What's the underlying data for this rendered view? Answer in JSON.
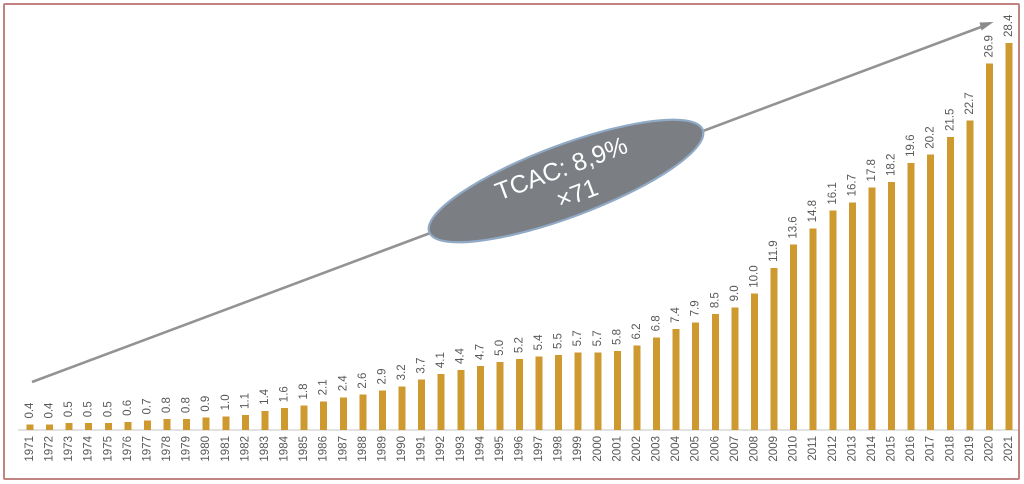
{
  "frame": {
    "border_color": "#C28383",
    "background": "#FFFFFF"
  },
  "chart_data": {
    "type": "bar",
    "title": "",
    "xlabel": "",
    "ylabel": "",
    "gridlines": false,
    "legend": false,
    "categories": [
      "1971",
      "1972",
      "1973",
      "1974",
      "1975",
      "1976",
      "1977",
      "1978",
      "1979",
      "1980",
      "1981",
      "1982",
      "1983",
      "1984",
      "1985",
      "1986",
      "1987",
      "1988",
      "1989",
      "1990",
      "1991",
      "1992",
      "1993",
      "1994",
      "1995",
      "1996",
      "1997",
      "1998",
      "1999",
      "2000",
      "2001",
      "2002",
      "2003",
      "2004",
      "2005",
      "2006",
      "2007",
      "2008",
      "2009",
      "2010",
      "2011",
      "2012",
      "2013",
      "2014",
      "2015",
      "2016",
      "2017",
      "2018",
      "2019",
      "2020",
      "2021"
    ],
    "values": [
      0.4,
      0.4,
      0.5,
      0.5,
      0.5,
      0.6,
      0.7,
      0.8,
      0.8,
      0.9,
      1.0,
      1.1,
      1.4,
      1.6,
      1.8,
      2.1,
      2.4,
      2.6,
      2.9,
      3.2,
      3.7,
      4.1,
      4.4,
      4.7,
      5.0,
      5.2,
      5.4,
      5.5,
      5.7,
      5.7,
      5.8,
      6.2,
      6.8,
      7.4,
      7.9,
      8.5,
      9.0,
      10.0,
      11.9,
      13.6,
      14.8,
      16.1,
      16.7,
      17.8,
      18.2,
      19.6,
      20.2,
      21.5,
      22.7,
      26.9,
      28.4
    ],
    "value_labels": [
      "0.4",
      "0.4",
      "0.5",
      "0.5",
      "0.5",
      "0.6",
      "0.7",
      "0.8",
      "0.8",
      "0.9",
      "1.0",
      "1.1",
      "1.4",
      "1.6",
      "1.8",
      "2.1",
      "2.4",
      "2.6",
      "2.9",
      "3.2",
      "3.7",
      "4.1",
      "4.4",
      "4.7",
      "5.0",
      "5.2",
      "5.4",
      "5.5",
      "5.7",
      "5.7",
      "5.8",
      "6.2",
      "6.8",
      "7.4",
      "7.9",
      "8.5",
      "9.0",
      "10.0",
      "11.9",
      "13.6",
      "14.8",
      "16.1",
      "16.7",
      "17.8",
      "18.2",
      "19.6",
      "20.2",
      "21.5",
      "22.7",
      "26.9",
      "28.4"
    ],
    "ylim": [
      0,
      29
    ],
    "bar_color": "#CE9A30",
    "label_color": "#595959",
    "axis_line_color": "#D9D9D9",
    "trend_line": {
      "color": "#939393",
      "description": "straight growth arrow from 1971 bar to 2020 label"
    },
    "annotation": {
      "line1": "TCAC: 8,9%",
      "line2": "×71",
      "fill_color": "#7B7F84",
      "stroke_color": "#90A9C5",
      "text_color": "#FFFFFF"
    }
  }
}
